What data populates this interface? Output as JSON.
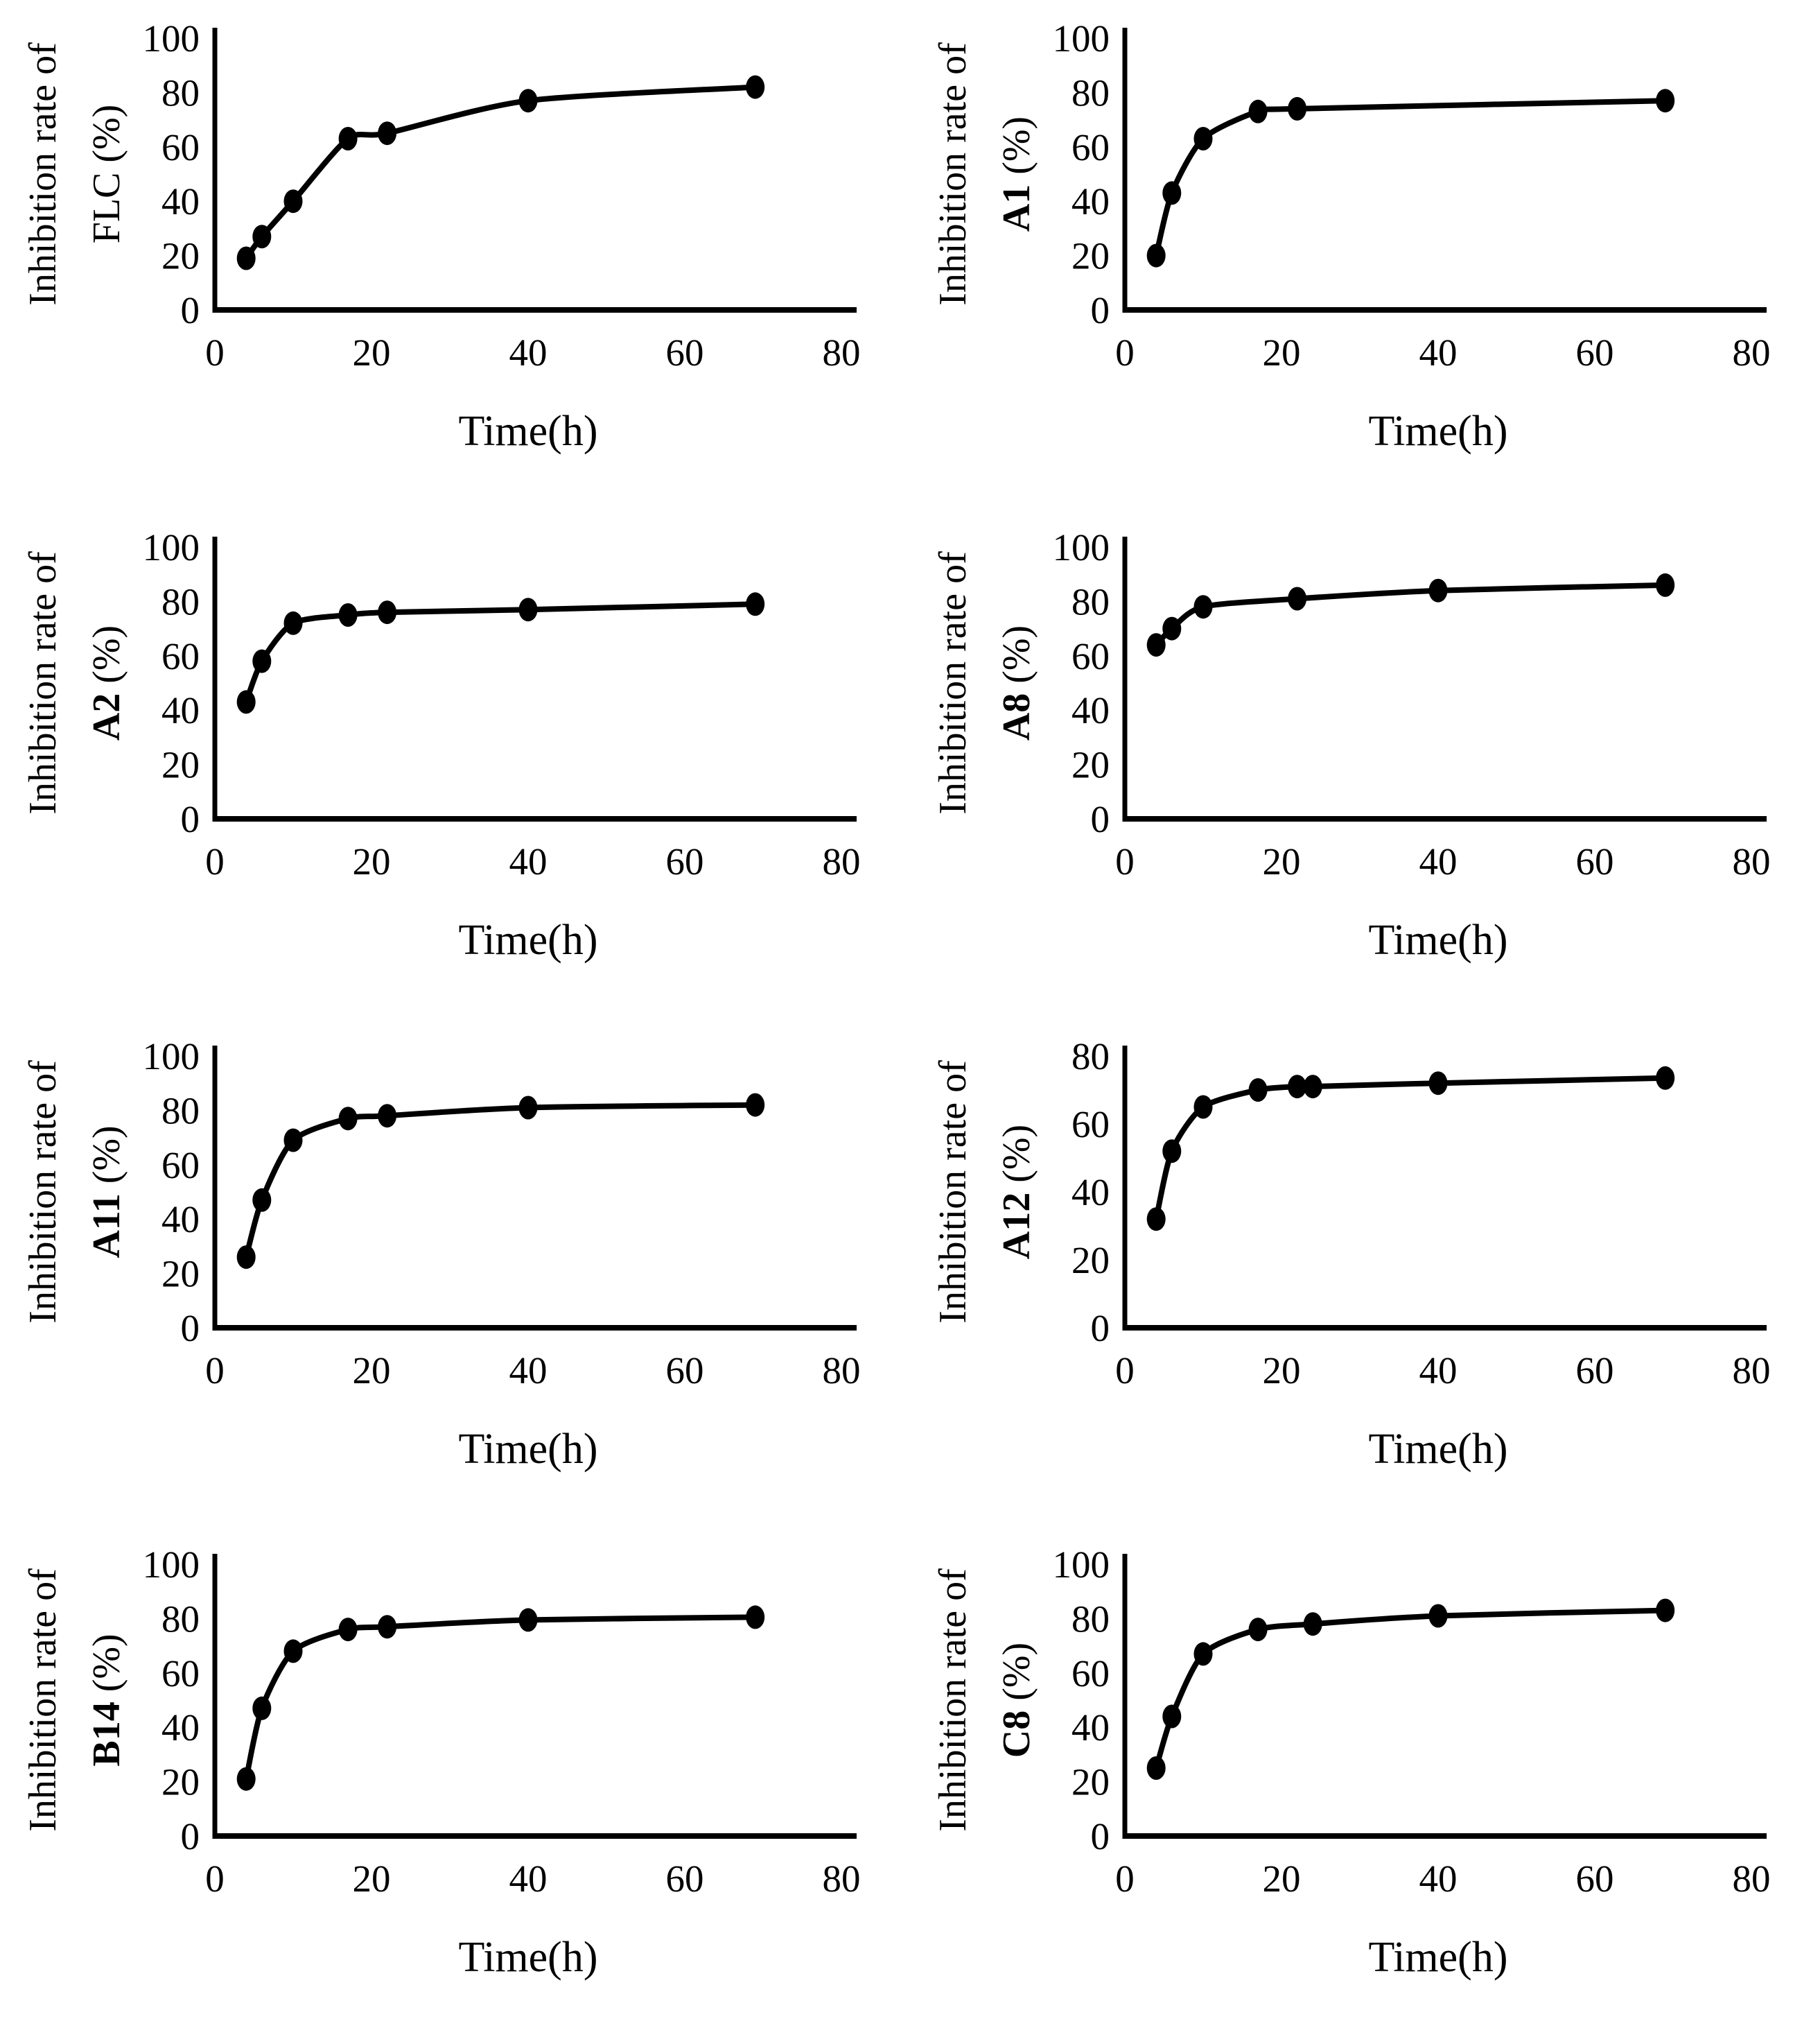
{
  "figure": {
    "description_xlabel": "Time(h)",
    "ylabel_prefix": "Inhibition rate of",
    "ink_color": "#000000",
    "background_color": "#ffffff"
  },
  "chart_data": [
    {
      "type": "line",
      "id": "FLC",
      "name": "FLC",
      "name_bold": false,
      "ylabel_line1": "Inhibition rate of",
      "ylabel_line2": "FLC (%)",
      "xlabel": "Time(h)",
      "x": [
        4,
        6,
        10,
        17,
        22,
        40,
        69
      ],
      "y": [
        19,
        27,
        40,
        63,
        65,
        77,
        82
      ],
      "xlim": [
        0,
        80
      ],
      "ylim": [
        0,
        100
      ],
      "xticks": [
        0,
        20,
        40,
        60,
        80
      ],
      "yticks": [
        0,
        20,
        40,
        60,
        80,
        100
      ],
      "line_color": "#000000",
      "marker": "filled-ellipse",
      "grid": false,
      "legend": "none"
    },
    {
      "type": "line",
      "id": "A1",
      "name": "A1",
      "name_bold": true,
      "ylabel_line1": "Inhibition rate of",
      "ylabel_line2": "A1 (%)",
      "xlabel": "Time(h)",
      "x": [
        4,
        6,
        10,
        17,
        22,
        69
      ],
      "y": [
        20,
        43,
        63,
        73,
        74,
        77
      ],
      "xlim": [
        0,
        80
      ],
      "ylim": [
        0,
        100
      ],
      "xticks": [
        0,
        20,
        40,
        60,
        80
      ],
      "yticks": [
        0,
        20,
        40,
        60,
        80,
        100
      ],
      "line_color": "#000000",
      "marker": "filled-ellipse",
      "grid": false,
      "legend": "none"
    },
    {
      "type": "line",
      "id": "A2",
      "name": "A2",
      "name_bold": true,
      "ylabel_line1": "Inhibition rate of",
      "ylabel_line2": "A2 (%)",
      "xlabel": "Time(h)",
      "x": [
        4,
        6,
        10,
        17,
        22,
        40,
        69
      ],
      "y": [
        43,
        58,
        72,
        75,
        76,
        77,
        79
      ],
      "xlim": [
        0,
        80
      ],
      "ylim": [
        0,
        100
      ],
      "xticks": [
        0,
        20,
        40,
        60,
        80
      ],
      "yticks": [
        0,
        20,
        40,
        60,
        80,
        100
      ],
      "line_color": "#000000",
      "marker": "filled-ellipse",
      "grid": false,
      "legend": "none"
    },
    {
      "type": "line",
      "id": "A8",
      "name": "A8",
      "name_bold": true,
      "ylabel_line1": "Inhibition rate of",
      "ylabel_line2": "A8 (%)",
      "xlabel": "Time(h)",
      "x": [
        4,
        6,
        10,
        22,
        40,
        69
      ],
      "y": [
        64,
        70,
        78,
        81,
        84,
        86
      ],
      "xlim": [
        0,
        80
      ],
      "ylim": [
        0,
        100
      ],
      "xticks": [
        0,
        20,
        40,
        60,
        80
      ],
      "yticks": [
        0,
        20,
        40,
        60,
        80,
        100
      ],
      "line_color": "#000000",
      "marker": "filled-ellipse",
      "grid": false,
      "legend": "none"
    },
    {
      "type": "line",
      "id": "A11",
      "name": "A11",
      "name_bold": true,
      "ylabel_line1": "Inhibition rate of",
      "ylabel_line2": "A11 (%)",
      "xlabel": "Time(h)",
      "x": [
        4,
        6,
        10,
        17,
        22,
        40,
        69
      ],
      "y": [
        26,
        47,
        69,
        77,
        78,
        81,
        82
      ],
      "xlim": [
        0,
        80
      ],
      "ylim": [
        0,
        100
      ],
      "xticks": [
        0,
        20,
        40,
        60,
        80
      ],
      "yticks": [
        0,
        20,
        40,
        60,
        80,
        100
      ],
      "line_color": "#000000",
      "marker": "filled-ellipse",
      "grid": false,
      "legend": "none"
    },
    {
      "type": "line",
      "id": "A12",
      "name": "A12",
      "name_bold": true,
      "ylabel_line1": "Inhibition rate of",
      "ylabel_line2": "A12 (%)",
      "xlabel": "Time(h)",
      "x": [
        4,
        6,
        10,
        17,
        22,
        24,
        40,
        69
      ],
      "y": [
        32,
        52,
        65,
        70,
        71,
        71,
        72,
        73.5
      ],
      "xlim": [
        0,
        80
      ],
      "ylim": [
        0,
        80
      ],
      "xticks": [
        0,
        20,
        40,
        60,
        80
      ],
      "yticks": [
        0,
        20,
        40,
        60,
        80
      ],
      "line_color": "#000000",
      "marker": "filled-ellipse",
      "grid": false,
      "legend": "none"
    },
    {
      "type": "line",
      "id": "B14",
      "name": "B14",
      "name_bold": true,
      "ylabel_line1": "Inhibition rate of",
      "ylabel_line2": "B14 (%)",
      "xlabel": "Time(h)",
      "x": [
        4,
        6,
        10,
        17,
        22,
        40,
        69
      ],
      "y": [
        21,
        47,
        68,
        76,
        77,
        79.5,
        80.5
      ],
      "xlim": [
        0,
        80
      ],
      "ylim": [
        0,
        100
      ],
      "xticks": [
        0,
        20,
        40,
        60,
        80
      ],
      "yticks": [
        0,
        20,
        40,
        60,
        80,
        100
      ],
      "line_color": "#000000",
      "marker": "filled-ellipse",
      "grid": false,
      "legend": "none"
    },
    {
      "type": "line",
      "id": "C8",
      "name": "C8",
      "name_bold": true,
      "ylabel_line1": "Inhibition rate of",
      "ylabel_line2": "C8 (%)",
      "xlabel": "Time(h)",
      "x": [
        4,
        6,
        10,
        17,
        24,
        40,
        69
      ],
      "y": [
        25,
        44,
        67,
        76,
        78,
        81,
        83
      ],
      "xlim": [
        0,
        80
      ],
      "ylim": [
        0,
        100
      ],
      "xticks": [
        0,
        20,
        40,
        60,
        80
      ],
      "yticks": [
        0,
        20,
        40,
        60,
        80,
        100
      ],
      "line_color": "#000000",
      "marker": "filled-ellipse",
      "grid": false,
      "legend": "none"
    }
  ]
}
